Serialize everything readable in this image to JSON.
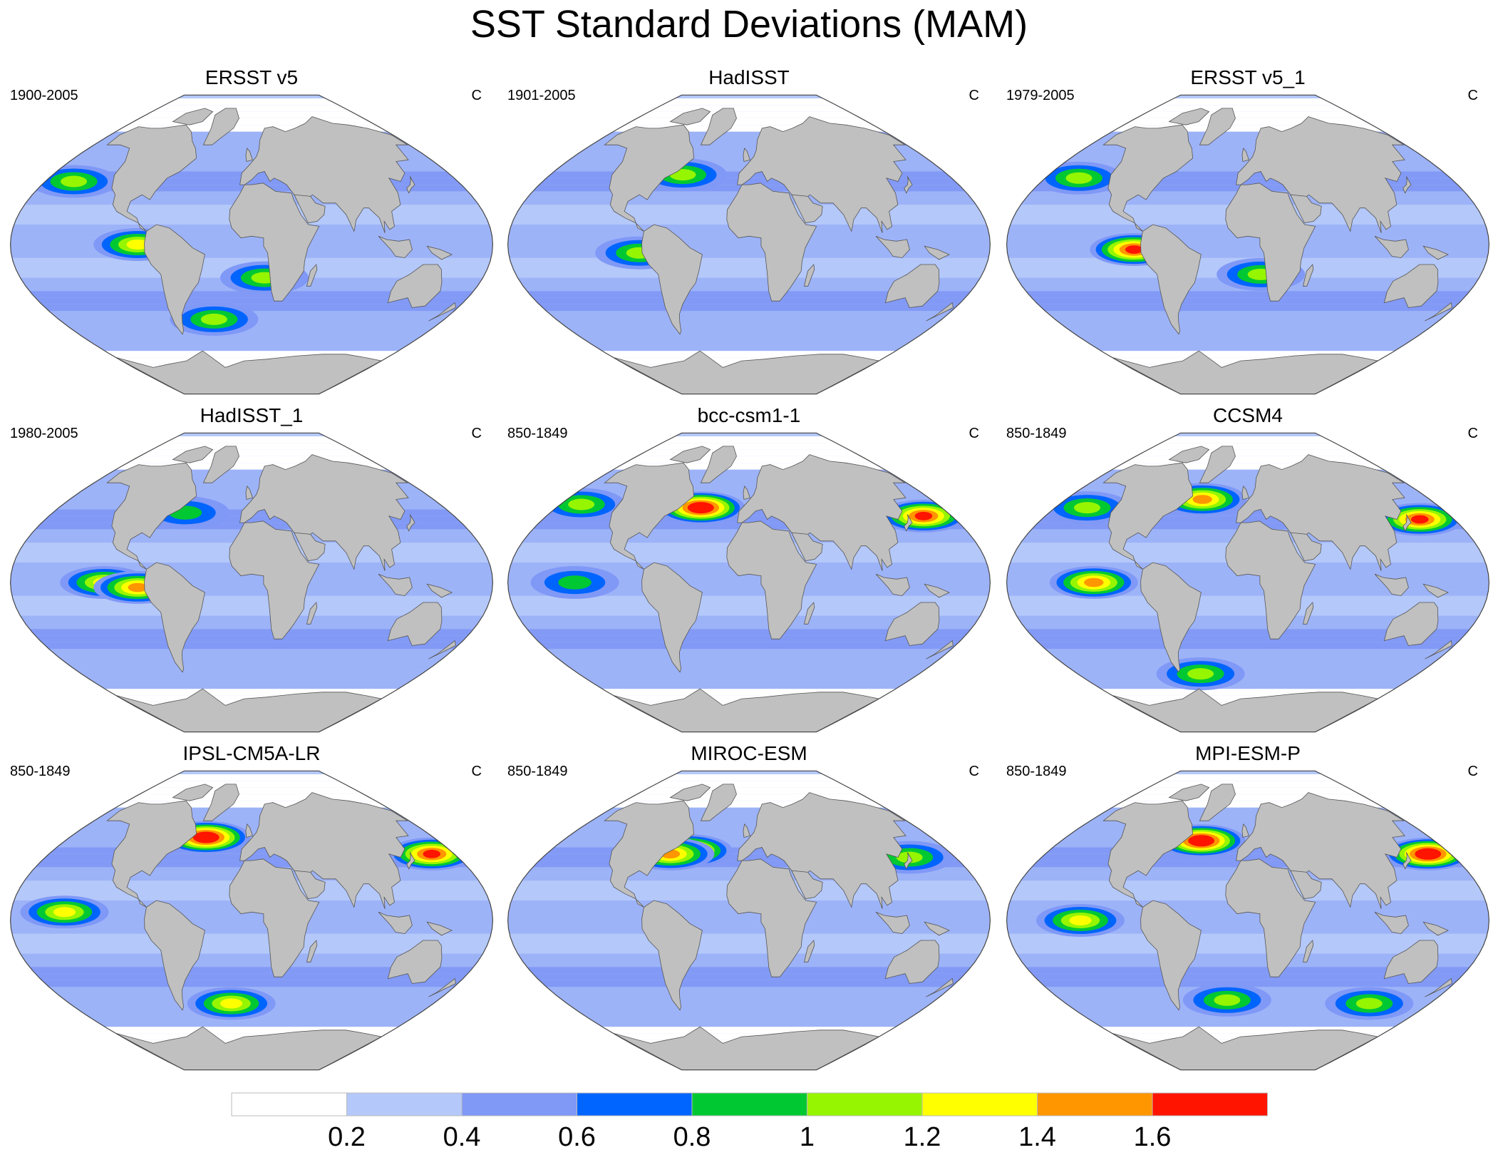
{
  "title": "SST Standard Deviations (MAM)",
  "chart_data": {
    "type": "heatmap",
    "title": "SST Standard Deviations (MAM)",
    "projection": "Robinson (global)",
    "units": "C",
    "panels": [
      {
        "name": "ERSST v5",
        "period": "1900-2005",
        "units": "C",
        "hotspots": [
          {
            "lon": -155,
            "lat": 38,
            "level": 0.9
          },
          {
            "lon": -85,
            "lat": 0,
            "level": 1.1
          },
          {
            "lon": -35,
            "lat": -45,
            "level": 0.9
          },
          {
            "lon": 10,
            "lat": -20,
            "level": 1.0
          }
        ]
      },
      {
        "name": "HadISST",
        "period": "1901-2005",
        "units": "C",
        "hotspots": [
          {
            "lon": -82,
            "lat": -5,
            "level": 1.0
          },
          {
            "lon": -60,
            "lat": 42,
            "level": 0.9
          }
        ]
      },
      {
        "name": "ERSST v5_1",
        "period": "1979-2005",
        "units": "C",
        "hotspots": [
          {
            "lon": -85,
            "lat": -3,
            "level": 1.5
          },
          {
            "lon": -150,
            "lat": 40,
            "level": 0.9
          },
          {
            "lon": 10,
            "lat": -18,
            "level": 1.0
          }
        ]
      },
      {
        "name": "HadISST_1",
        "period": "1980-2005",
        "units": "C",
        "hotspots": [
          {
            "lon": -110,
            "lat": 0,
            "level": 1.1
          },
          {
            "lon": -85,
            "lat": -3,
            "level": 1.3
          },
          {
            "lon": -60,
            "lat": 42,
            "level": 0.8
          }
        ]
      },
      {
        "name": "bcc-csm1-1",
        "period": "850-1849",
        "units": "C",
        "hotspots": [
          {
            "lon": 155,
            "lat": 40,
            "level": 1.5
          },
          {
            "lon": -160,
            "lat": 47,
            "level": 0.9
          },
          {
            "lon": -45,
            "lat": 45,
            "level": 1.7
          },
          {
            "lon": -130,
            "lat": 0,
            "level": 0.8
          }
        ]
      },
      {
        "name": "CCSM4",
        "period": "850-1849",
        "units": "C",
        "hotspots": [
          {
            "lon": 150,
            "lat": 38,
            "level": 1.6
          },
          {
            "lon": -150,
            "lat": 45,
            "level": 1.0
          },
          {
            "lon": -115,
            "lat": 0,
            "level": 1.3
          },
          {
            "lon": -45,
            "lat": 50,
            "level": 1.4
          },
          {
            "lon": -50,
            "lat": -55,
            "level": 1.0
          }
        ]
      },
      {
        "name": "IPSL-CM5A-LR",
        "period": "850-1849",
        "units": "C",
        "hotspots": [
          {
            "lon": 160,
            "lat": 40,
            "level": 1.5
          },
          {
            "lon": -140,
            "lat": 5,
            "level": 1.2
          },
          {
            "lon": -45,
            "lat": 50,
            "level": 1.7
          },
          {
            "lon": -20,
            "lat": -50,
            "level": 1.2
          }
        ]
      },
      {
        "name": "MIROC-ESM",
        "period": "850-1849",
        "units": "C",
        "hotspots": [
          {
            "lon": -55,
            "lat": 42,
            "level": 1.6
          },
          {
            "lon": -70,
            "lat": 40,
            "level": 1.3
          },
          {
            "lon": 140,
            "lat": 38,
            "level": 1.0
          }
        ]
      },
      {
        "name": "MPI-ESM-P",
        "period": "850-1849",
        "units": "C",
        "hotspots": [
          {
            "lon": 160,
            "lat": 40,
            "level": 1.7
          },
          {
            "lon": -45,
            "lat": 48,
            "level": 1.7
          },
          {
            "lon": -125,
            "lat": 0,
            "level": 1.2
          },
          {
            "lon": 120,
            "lat": -50,
            "level": 1.0
          },
          {
            "lon": -20,
            "lat": -48,
            "level": 1.0
          }
        ]
      }
    ],
    "colorbar": {
      "levels": [
        "0.2",
        "0.4",
        "0.6",
        "0.8",
        "1",
        "1.2",
        "1.4",
        "1.6"
      ],
      "colors": [
        "#ffffff",
        "#b4c8fa",
        "#8098f6",
        "#0064ff",
        "#00c832",
        "#96f500",
        "#ffff00",
        "#ff9600",
        "#ff1400"
      ]
    }
  },
  "colors": {
    "land": "#c0c0c0",
    "coast": "#555555",
    "globe_outline": "#444444"
  }
}
